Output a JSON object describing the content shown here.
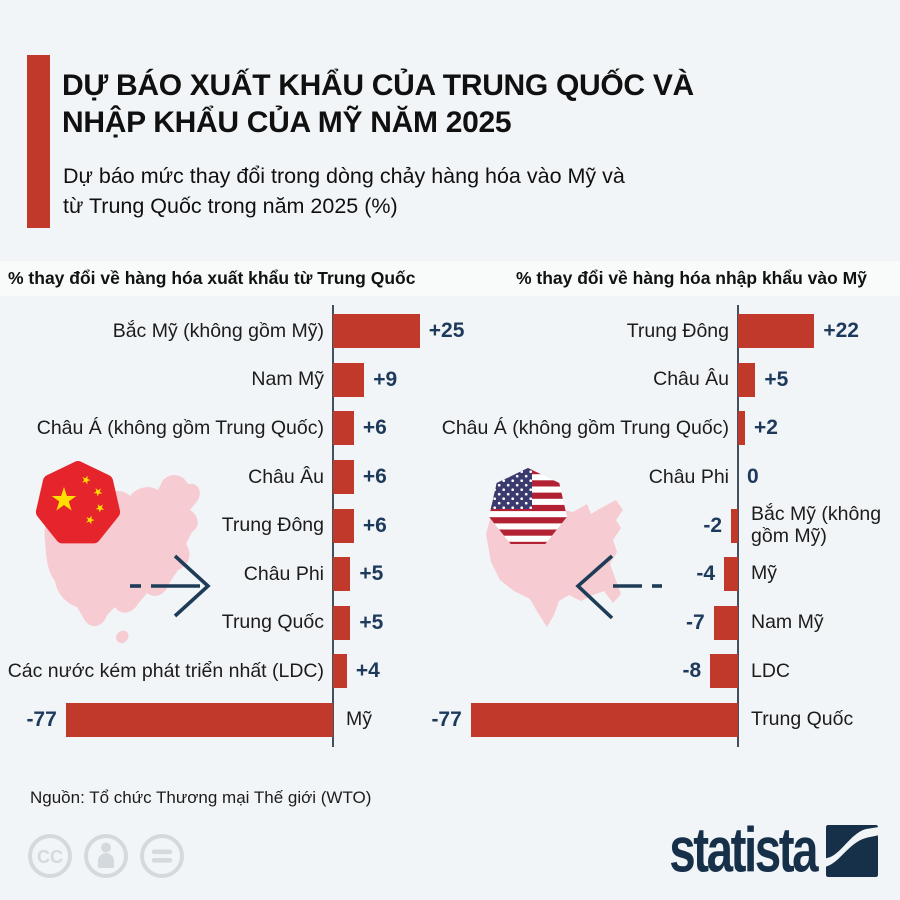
{
  "header": {
    "title": "DỰ BÁO XUẤT KHẨU CỦA TRUNG QUỐC VÀ\nNHẬP KHẨU CỦA MỸ NĂM 2025",
    "subtitle": "Dự báo mức thay đổi trong dòng chảy hàng hóa vào Mỹ và\ntừ Trung Quốc trong năm 2025 (%)"
  },
  "chart_data": [
    {
      "type": "bar",
      "orientation": "horizontal",
      "title": "% thay đổi về hàng hóa xuất khẩu từ Trung Quốc",
      "categories": [
        "Bắc Mỹ (không gồm Mỹ)",
        "Nam Mỹ",
        "Châu Á (không gồm Trung Quốc)",
        "Châu Âu",
        "Trung Đông",
        "Châu Phi",
        "Trung Quốc",
        "Các nước kém phát triển nhất (LDC)",
        "Mỹ"
      ],
      "values": [
        25,
        9,
        6,
        6,
        6,
        5,
        5,
        4,
        -77
      ],
      "value_labels": [
        "+25",
        "+9",
        "+6",
        "+6",
        "+6",
        "+5",
        "+5",
        "+4",
        "-77"
      ],
      "xlim": [
        -77,
        25
      ],
      "bar_color": "#c1392b",
      "legend": "none",
      "grid": false
    },
    {
      "type": "bar",
      "orientation": "horizontal",
      "title": "% thay đổi về hàng hóa nhập khẩu vào Mỹ",
      "categories": [
        "Trung Đông",
        "Châu Âu",
        "Châu Á (không gồm Trung Quốc)",
        "Châu Phi",
        "Bắc Mỹ (không gồm Mỹ)",
        "Mỹ",
        "Nam Mỹ",
        "LDC",
        "Trung Quốc"
      ],
      "values": [
        22,
        5,
        2,
        0,
        -2,
        -4,
        -7,
        -8,
        -77
      ],
      "value_labels": [
        "+22",
        "+5",
        "+2",
        "0",
        "-2",
        "-4",
        "-7",
        "-8",
        "-77"
      ],
      "xlim": [
        -77,
        22
      ],
      "bar_color": "#c1392b",
      "legend": "none",
      "grid": false
    }
  ],
  "decorations": {
    "left": [
      "china-map",
      "china-flag",
      "right-arrow"
    ],
    "right": [
      "usa-map",
      "usa-flag",
      "left-arrow"
    ]
  },
  "footer": {
    "source": "Nguồn: Tổ chức Thương mại Thế giới (WTO)",
    "license_icons": [
      "cc",
      "person",
      "equals"
    ],
    "brand": "statista"
  },
  "colors": {
    "background": "#f2f5f7",
    "bar_red": "#c1392b",
    "flag_red": "#e5242b",
    "star_yellow": "#ffde00",
    "value_navy": "#1d3a5c",
    "axis": "#44505c",
    "map_pink": "#f6cbd1",
    "arrow_navy": "#1e3c58",
    "brand_navy": "#16304a",
    "license_gray": "#d3d9dd"
  }
}
